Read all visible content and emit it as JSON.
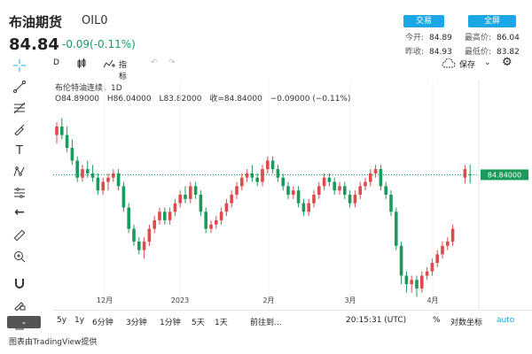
{
  "header": {
    "title": "布油期货",
    "symbol": "OIL0",
    "price": "84.84",
    "change": "-0.09(-0.11%)",
    "trade_button": "交易",
    "fullscreen_button": "全屏",
    "open_label": "今开:",
    "open_value": "84.89",
    "high_label": "最高价:",
    "high_value": "86.04",
    "prev_label": "昨收:",
    "prev_value": "84.93",
    "low_label": "最低价:",
    "low_value": "83.82"
  },
  "toolbar": {
    "interval": "D",
    "indicators": "指标",
    "save": "保存"
  },
  "legend": {
    "name": "布伦特油连续，1D",
    "open": "O84.89000",
    "high": "H86.04000",
    "low": "L83.82000",
    "close": "收=84.84000",
    "change": "−0.09000 (−0.11%)"
  },
  "bottom": {
    "ranges": [
      "5y",
      "1y",
      "6分钟",
      "3分钟",
      "1分钟",
      "5天",
      "1天"
    ],
    "goto": "前往到...",
    "time": "20:15:31 (UTC)",
    "percent": "%",
    "log": "对数坐标",
    "auto": "auto"
  },
  "collapse_label": "⌄",
  "credit": "图表由TradingView提供",
  "colors": {
    "up": "#dd4b4b",
    "down": "#1a9a5c",
    "accent": "#1ba6e6"
  },
  "chart_data": {
    "type": "candlestick",
    "x_ticks": [
      "12月",
      "2023",
      "2月",
      "3月",
      "4月"
    ],
    "last_price_label": "84.84000",
    "last_price": 84.84,
    "series": [
      {
        "o": 89.5,
        "h": 91,
        "l": 88.5,
        "c": 90.5
      },
      {
        "o": 90.5,
        "h": 91.5,
        "l": 89,
        "c": 89.5
      },
      {
        "o": 89.5,
        "h": 90.5,
        "l": 87.5,
        "c": 88
      },
      {
        "o": 88,
        "h": 89,
        "l": 86,
        "c": 86.5
      },
      {
        "o": 86.5,
        "h": 87,
        "l": 84,
        "c": 84.5
      },
      {
        "o": 84.5,
        "h": 86,
        "l": 84,
        "c": 85.5
      },
      {
        "o": 85.5,
        "h": 86.5,
        "l": 84.5,
        "c": 85
      },
      {
        "o": 85,
        "h": 86,
        "l": 84,
        "c": 84.5
      },
      {
        "o": 84.5,
        "h": 85,
        "l": 82.5,
        "c": 83
      },
      {
        "o": 83,
        "h": 84.5,
        "l": 82.5,
        "c": 84
      },
      {
        "o": 84,
        "h": 85,
        "l": 83,
        "c": 84.5
      },
      {
        "o": 84.5,
        "h": 85.5,
        "l": 84,
        "c": 85
      },
      {
        "o": 85,
        "h": 85.5,
        "l": 83,
        "c": 83.5
      },
      {
        "o": 83.5,
        "h": 84,
        "l": 80.5,
        "c": 81
      },
      {
        "o": 81,
        "h": 81.5,
        "l": 78,
        "c": 78.5
      },
      {
        "o": 78.5,
        "h": 79,
        "l": 76.5,
        "c": 77
      },
      {
        "o": 77,
        "h": 77.5,
        "l": 75.5,
        "c": 76
      },
      {
        "o": 76,
        "h": 77.5,
        "l": 75,
        "c": 77
      },
      {
        "o": 77,
        "h": 79,
        "l": 76.5,
        "c": 78.5
      },
      {
        "o": 78.5,
        "h": 80,
        "l": 78,
        "c": 79.5
      },
      {
        "o": 79.5,
        "h": 81,
        "l": 79,
        "c": 80.5
      },
      {
        "o": 80.5,
        "h": 81,
        "l": 79,
        "c": 79.5
      },
      {
        "o": 79.5,
        "h": 81,
        "l": 79,
        "c": 80.5
      },
      {
        "o": 80.5,
        "h": 82,
        "l": 80,
        "c": 81.5
      },
      {
        "o": 81.5,
        "h": 83,
        "l": 81,
        "c": 82.5
      },
      {
        "o": 82.5,
        "h": 83.5,
        "l": 81.5,
        "c": 82
      },
      {
        "o": 82,
        "h": 84,
        "l": 81.5,
        "c": 83.5
      },
      {
        "o": 83.5,
        "h": 84,
        "l": 82,
        "c": 82.5
      },
      {
        "o": 82.5,
        "h": 83,
        "l": 80,
        "c": 80.5
      },
      {
        "o": 80.5,
        "h": 81,
        "l": 78,
        "c": 78.5
      },
      {
        "o": 78.5,
        "h": 79.5,
        "l": 78,
        "c": 79
      },
      {
        "o": 79,
        "h": 80,
        "l": 78.5,
        "c": 79.5
      },
      {
        "o": 79.5,
        "h": 81,
        "l": 79,
        "c": 80.5
      },
      {
        "o": 80.5,
        "h": 82,
        "l": 80,
        "c": 81.5
      },
      {
        "o": 81.5,
        "h": 83,
        "l": 81,
        "c": 82.5
      },
      {
        "o": 82.5,
        "h": 84,
        "l": 82,
        "c": 83.5
      },
      {
        "o": 83.5,
        "h": 85,
        "l": 83,
        "c": 84.5
      },
      {
        "o": 84.5,
        "h": 85.5,
        "l": 84,
        "c": 85
      },
      {
        "o": 85,
        "h": 86,
        "l": 84,
        "c": 84.5
      },
      {
        "o": 84.5,
        "h": 85,
        "l": 83.5,
        "c": 84
      },
      {
        "o": 84,
        "h": 86,
        "l": 83.5,
        "c": 85.5
      },
      {
        "o": 85.5,
        "h": 87,
        "l": 85,
        "c": 86.5
      },
      {
        "o": 86.5,
        "h": 87,
        "l": 85,
        "c": 85.5
      },
      {
        "o": 85.5,
        "h": 86,
        "l": 84,
        "c": 84.5
      },
      {
        "o": 84.5,
        "h": 85,
        "l": 83,
        "c": 83.5
      },
      {
        "o": 83.5,
        "h": 84,
        "l": 82,
        "c": 82.5
      },
      {
        "o": 82.5,
        "h": 83.5,
        "l": 82,
        "c": 83
      },
      {
        "o": 83,
        "h": 83.5,
        "l": 81,
        "c": 81.5
      },
      {
        "o": 81.5,
        "h": 82,
        "l": 80,
        "c": 80.5
      },
      {
        "o": 80.5,
        "h": 82,
        "l": 80,
        "c": 81.5
      },
      {
        "o": 81.5,
        "h": 83,
        "l": 81,
        "c": 82.5
      },
      {
        "o": 82.5,
        "h": 84,
        "l": 82,
        "c": 83.5
      },
      {
        "o": 83.5,
        "h": 85,
        "l": 83,
        "c": 84.5
      },
      {
        "o": 84.5,
        "h": 85,
        "l": 83.5,
        "c": 84
      },
      {
        "o": 84,
        "h": 84.5,
        "l": 82.5,
        "c": 83
      },
      {
        "o": 83,
        "h": 84,
        "l": 82.5,
        "c": 83.5
      },
      {
        "o": 83.5,
        "h": 84,
        "l": 82,
        "c": 82.5
      },
      {
        "o": 82.5,
        "h": 83,
        "l": 81,
        "c": 81.5
      },
      {
        "o": 81.5,
        "h": 83,
        "l": 81,
        "c": 82.5
      },
      {
        "o": 82.5,
        "h": 84,
        "l": 82,
        "c": 83.5
      },
      {
        "o": 83.5,
        "h": 84.5,
        "l": 83,
        "c": 84
      },
      {
        "o": 84,
        "h": 85.5,
        "l": 83.5,
        "c": 85
      },
      {
        "o": 85,
        "h": 86,
        "l": 84.5,
        "c": 85.5
      },
      {
        "o": 85.5,
        "h": 86,
        "l": 83,
        "c": 83.5
      },
      {
        "o": 83.5,
        "h": 84,
        "l": 82,
        "c": 82.5
      },
      {
        "o": 82.5,
        "h": 83,
        "l": 80,
        "c": 80.5
      },
      {
        "o": 80.5,
        "h": 81,
        "l": 76,
        "c": 76.5
      },
      {
        "o": 76.5,
        "h": 77,
        "l": 72,
        "c": 73
      },
      {
        "o": 73,
        "h": 73.5,
        "l": 71,
        "c": 72
      },
      {
        "o": 72,
        "h": 73,
        "l": 71,
        "c": 72.5
      },
      {
        "o": 72.5,
        "h": 73,
        "l": 70.5,
        "c": 71.5
      },
      {
        "o": 71.5,
        "h": 73.5,
        "l": 71,
        "c": 73
      },
      {
        "o": 73,
        "h": 74,
        "l": 72.5,
        "c": 73.5
      },
      {
        "o": 73.5,
        "h": 75,
        "l": 73,
        "c": 74.5
      },
      {
        "o": 74.5,
        "h": 76,
        "l": 74,
        "c": 75.5
      },
      {
        "o": 75.5,
        "h": 77,
        "l": 75,
        "c": 76.5
      },
      {
        "o": 76.5,
        "h": 77.5,
        "l": 76,
        "c": 77
      },
      {
        "o": 77,
        "h": 79,
        "l": 76.5,
        "c": 78.5
      },
      {
        "o": 84.5,
        "h": 86,
        "l": 83.8,
        "c": 85.5
      },
      {
        "o": 84.89,
        "h": 86.04,
        "l": 83.82,
        "c": 84.84
      }
    ],
    "ylim": [
      69,
      96
    ]
  }
}
